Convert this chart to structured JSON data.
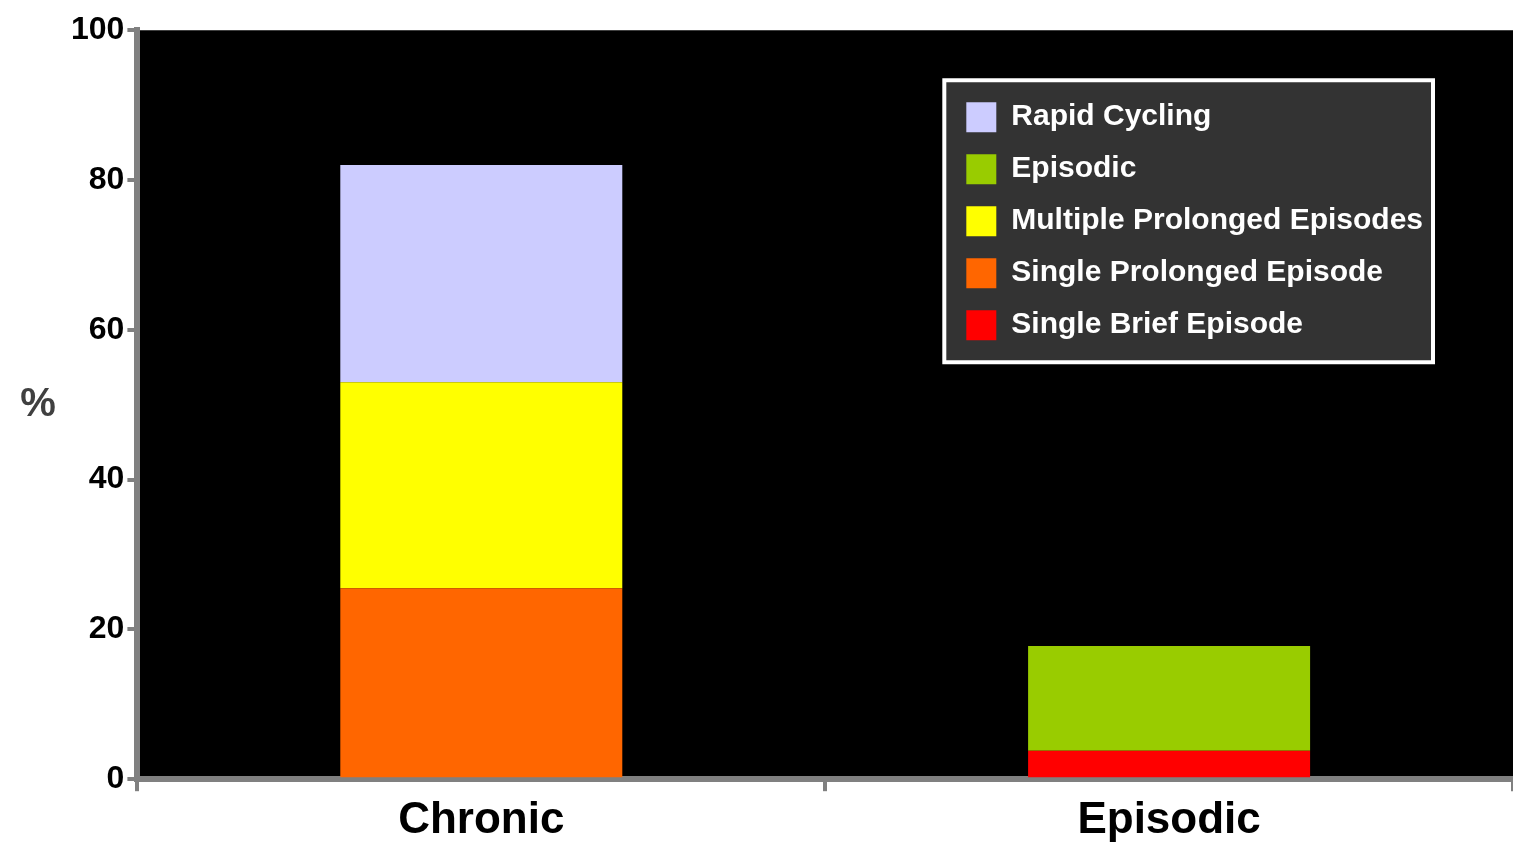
{
  "chart_data": {
    "type": "bar",
    "stacked": true,
    "categories": [
      "Chronic",
      "Episodic"
    ],
    "ylabel": "%",
    "ylim": [
      0,
      100
    ],
    "yticks": [
      0,
      20,
      40,
      60,
      80,
      100
    ],
    "grid": false,
    "legend": "top right",
    "series": [
      {
        "name": "Single Brief Episode",
        "color": "#ff0000",
        "values": [
          null,
          3.8
        ]
      },
      {
        "name": "Single Prolonged Episode",
        "color": "#ff6600",
        "values": [
          25.5,
          null
        ]
      },
      {
        "name": "Multiple Prolonged Episodes",
        "color": "#ffff00",
        "values": [
          27.5,
          null
        ]
      },
      {
        "name": "Episodic",
        "color": "#99cc00",
        "values": [
          null,
          14
        ]
      },
      {
        "name": "Rapid Cycling",
        "color": "#ccccff",
        "values": [
          29,
          null
        ]
      }
    ]
  }
}
